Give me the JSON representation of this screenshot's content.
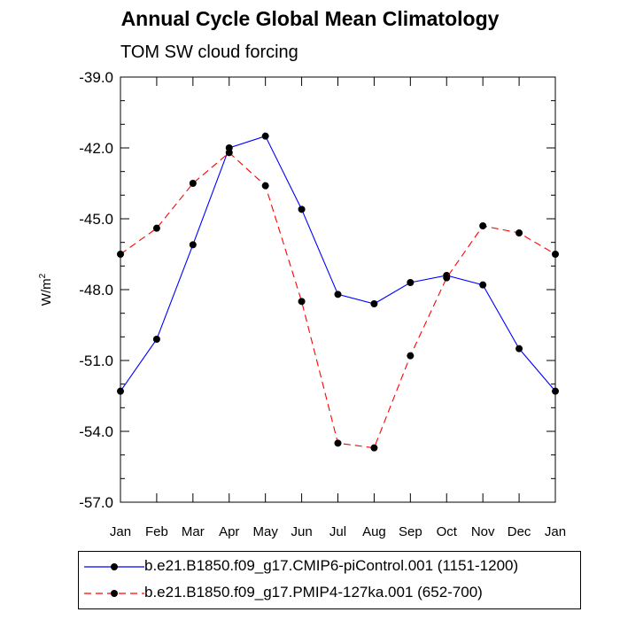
{
  "chart_data": {
    "type": "line",
    "title": "Annual Cycle Global Mean Climatology",
    "subtitle": "TOM SW cloud forcing",
    "ylabel": "W/m",
    "ylabel_sup": "2",
    "ylim": [
      -57.0,
      -39.0
    ],
    "yticks": [
      "-39.0",
      "-42.0",
      "-45.0",
      "-48.0",
      "-51.0",
      "-54.0",
      "-57.0"
    ],
    "ytick_values": [
      -39,
      -42,
      -45,
      -48,
      -51,
      -54,
      -57
    ],
    "categories": [
      "Jan",
      "Feb",
      "Mar",
      "Apr",
      "May",
      "Jun",
      "Jul",
      "Aug",
      "Sep",
      "Oct",
      "Nov",
      "Dec",
      "Jan"
    ],
    "series": [
      {
        "name": "b.e21.B1850.f09_g17.CMIP6-piControl.001 (1151-1200)",
        "color": "#0000ff",
        "dash": "solid",
        "values": [
          -52.3,
          -50.1,
          -46.1,
          -42.0,
          -41.5,
          -44.6,
          -48.2,
          -48.6,
          -47.7,
          -47.4,
          -47.8,
          -50.5,
          -52.3
        ]
      },
      {
        "name": "b.e21.B1850.f09_g17.PMIP4-127ka.001 (652-700)",
        "color": "#ff0000",
        "dash": "dashed",
        "values": [
          -46.5,
          -45.4,
          -43.5,
          -42.2,
          -43.6,
          -48.5,
          -54.5,
          -54.7,
          -50.8,
          -47.5,
          -45.3,
          -45.6,
          -46.5
        ]
      }
    ],
    "legend_position": "bottom",
    "grid": false
  }
}
